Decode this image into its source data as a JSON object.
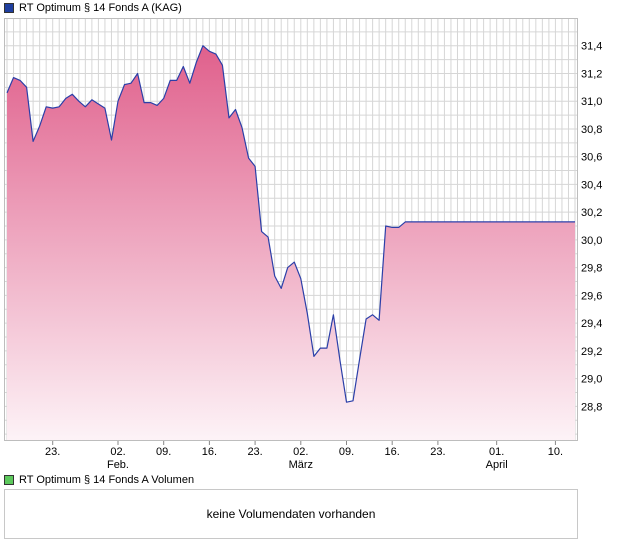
{
  "price_legend": {
    "label": "RT Optimum § 14 Fonds A (KAG)",
    "color": "#1f3f9f"
  },
  "volume_legend": {
    "label": "RT Optimum § 14 Fonds A Volumen",
    "color": "#5cc85c"
  },
  "volume_panel": {
    "message": "keine Volumendaten vorhanden"
  },
  "colors": {
    "line": "#2b3fa8",
    "fill_top": "#e0608c",
    "fill_bottom": "#fdf3f7",
    "grid": "#d6d6d6",
    "frame": "#bdbdbd"
  },
  "chart_data": {
    "type": "area",
    "title": "",
    "xlabel": "",
    "ylabel": "",
    "ylim": [
      28.55,
      31.6
    ],
    "y_ticks": [
      "28,8",
      "29,0",
      "29,2",
      "29,4",
      "29,6",
      "29,8",
      "30,0",
      "30,2",
      "30,4",
      "30,6",
      "30,8",
      "31,0",
      "31,2",
      "31,4"
    ],
    "y_tick_values": [
      28.8,
      29.0,
      29.2,
      29.4,
      29.6,
      29.8,
      30.0,
      30.2,
      30.4,
      30.6,
      30.8,
      31.0,
      31.2,
      31.4
    ],
    "x_range": [
      "2023-01-16",
      "2023-04-13"
    ],
    "x_ticks": [
      {
        "date": "2023-01-23",
        "label": "23.",
        "sublabel": ""
      },
      {
        "date": "2023-02-02",
        "label": "02.",
        "sublabel": "Feb."
      },
      {
        "date": "2023-02-09",
        "label": "09.",
        "sublabel": ""
      },
      {
        "date": "2023-02-16",
        "label": "16.",
        "sublabel": ""
      },
      {
        "date": "2023-02-23",
        "label": "23.",
        "sublabel": ""
      },
      {
        "date": "2023-03-02",
        "label": "02.",
        "sublabel": "März"
      },
      {
        "date": "2023-03-09",
        "label": "09.",
        "sublabel": ""
      },
      {
        "date": "2023-03-16",
        "label": "16.",
        "sublabel": ""
      },
      {
        "date": "2023-03-23",
        "label": "23.",
        "sublabel": ""
      },
      {
        "date": "2023-04-01",
        "label": "01.",
        "sublabel": "April"
      },
      {
        "date": "2023-04-10",
        "label": "10.",
        "sublabel": ""
      }
    ],
    "series": [
      {
        "dates": [
          "2023-01-16",
          "2023-01-17",
          "2023-01-18",
          "2023-01-19",
          "2023-01-20",
          "2023-01-21",
          "2023-01-22",
          "2023-01-23",
          "2023-01-24",
          "2023-01-25",
          "2023-01-26",
          "2023-01-27",
          "2023-01-28",
          "2023-01-29",
          "2023-01-30",
          "2023-01-31",
          "2023-02-01",
          "2023-02-02",
          "2023-02-03",
          "2023-02-04",
          "2023-02-05",
          "2023-02-06",
          "2023-02-07",
          "2023-02-08",
          "2023-02-09",
          "2023-02-10",
          "2023-02-11",
          "2023-02-12",
          "2023-02-13",
          "2023-02-14",
          "2023-02-15",
          "2023-02-16",
          "2023-02-17",
          "2023-02-18",
          "2023-02-19",
          "2023-02-20",
          "2023-02-21",
          "2023-02-22",
          "2023-02-23",
          "2023-02-24",
          "2023-02-25",
          "2023-02-26",
          "2023-02-27",
          "2023-02-28",
          "2023-03-01",
          "2023-03-02",
          "2023-03-03",
          "2023-03-04",
          "2023-03-05",
          "2023-03-06",
          "2023-03-07",
          "2023-03-08",
          "2023-03-09",
          "2023-03-10",
          "2023-03-11",
          "2023-03-12",
          "2023-03-13",
          "2023-03-14",
          "2023-03-15",
          "2023-03-16",
          "2023-03-17",
          "2023-03-18",
          "2023-03-19",
          "2023-03-20",
          "2023-03-21",
          "2023-03-22",
          "2023-03-23",
          "2023-03-24",
          "2023-03-25",
          "2023-03-26",
          "2023-03-27",
          "2023-03-28",
          "2023-03-29",
          "2023-03-30",
          "2023-03-31",
          "2023-04-01",
          "2023-04-02",
          "2023-04-03",
          "2023-04-04",
          "2023-04-05",
          "2023-04-06",
          "2023-04-07",
          "2023-04-08",
          "2023-04-09",
          "2023-04-10",
          "2023-04-11",
          "2023-04-12",
          "2023-04-13"
        ],
        "values": [
          31.06,
          31.17,
          31.15,
          31.1,
          30.71,
          30.82,
          30.96,
          30.95,
          30.96,
          31.02,
          31.05,
          31.0,
          30.96,
          31.01,
          30.98,
          30.95,
          30.72,
          31.0,
          31.12,
          31.13,
          31.2,
          30.99,
          30.99,
          30.97,
          31.02,
          31.15,
          31.15,
          31.25,
          31.13,
          31.28,
          31.4,
          31.36,
          31.34,
          31.26,
          30.88,
          30.94,
          30.81,
          30.59,
          30.53,
          30.06,
          30.02,
          29.74,
          29.65,
          29.8,
          29.84,
          29.72,
          29.47,
          29.16,
          29.22,
          29.22,
          29.46,
          29.13,
          28.83,
          28.84,
          29.14,
          29.43,
          29.46,
          29.42,
          30.1,
          30.09,
          30.09,
          30.13,
          30.13,
          30.13,
          30.13,
          30.13,
          30.13,
          30.13,
          30.13,
          30.13,
          30.13,
          30.13,
          30.13,
          30.13,
          30.13,
          30.13,
          30.13,
          30.13,
          30.13,
          30.13,
          30.13,
          30.13,
          30.13,
          30.13,
          30.13,
          30.13,
          30.13,
          30.13
        ]
      }
    ],
    "grid": true,
    "y_axis_side": "right"
  }
}
